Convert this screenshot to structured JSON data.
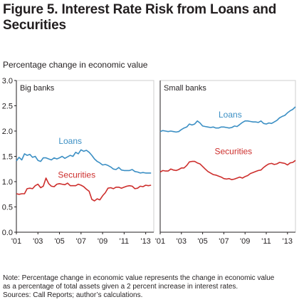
{
  "title": "Figure 5. Interest Rate Risk from Loans and Securities",
  "subtitle": "Percentage change in economic value",
  "note_lines": [
    "Note: Percentage change in economic value represents the change in economic value",
    "as a percentage of total assets given a 2 percent increase in interest rates.",
    "Sources: Call Reports; author’s calculations."
  ],
  "colors": {
    "loans": "#3b8fc4",
    "securities": "#cd2e2c",
    "axis": "#231f20",
    "panel_border": "#cfcfcf"
  },
  "chart_data": [
    {
      "type": "line",
      "panel_label": "Big banks",
      "xlim": [
        2001,
        2013.75
      ],
      "x_ticks": [
        "'01",
        "'03",
        "'05",
        "'07",
        "'09",
        "'11",
        "'13"
      ],
      "x_tick_values": [
        2001,
        2003,
        2005,
        2007,
        2009,
        2011,
        2013
      ],
      "ylim": [
        0,
        3.0
      ],
      "y_ticks": [
        "0.0",
        "0.5",
        "1.0",
        "1.5",
        "2.0",
        "2.5",
        "3.0"
      ],
      "y_tick_values": [
        0,
        0.5,
        1.0,
        1.5,
        2.0,
        2.5,
        3.0
      ],
      "grid": false,
      "series": [
        {
          "name": "Loans",
          "key": "loans",
          "label_at": [
            2006.0,
            1.75
          ],
          "x": [
            2001.0,
            2001.25,
            2001.5,
            2001.75,
            2002.0,
            2002.25,
            2002.5,
            2002.75,
            2003.0,
            2003.25,
            2003.5,
            2003.75,
            2004.0,
            2004.25,
            2004.5,
            2004.75,
            2005.0,
            2005.25,
            2005.5,
            2005.75,
            2006.0,
            2006.25,
            2006.5,
            2006.75,
            2007.0,
            2007.25,
            2007.5,
            2007.75,
            2008.0,
            2008.25,
            2008.5,
            2008.75,
            2009.0,
            2009.25,
            2009.5,
            2009.75,
            2010.0,
            2010.25,
            2010.5,
            2010.75,
            2011.0,
            2011.25,
            2011.5,
            2011.75,
            2012.0,
            2012.25,
            2012.5,
            2012.75,
            2013.0,
            2013.25,
            2013.5
          ],
          "values": [
            1.41,
            1.48,
            1.43,
            1.55,
            1.52,
            1.54,
            1.48,
            1.5,
            1.42,
            1.4,
            1.47,
            1.47,
            1.45,
            1.43,
            1.47,
            1.45,
            1.47,
            1.5,
            1.46,
            1.49,
            1.52,
            1.5,
            1.58,
            1.55,
            1.63,
            1.6,
            1.62,
            1.58,
            1.52,
            1.45,
            1.4,
            1.37,
            1.33,
            1.34,
            1.32,
            1.29,
            1.25,
            1.24,
            1.28,
            1.23,
            1.22,
            1.22,
            1.22,
            1.24,
            1.2,
            1.19,
            1.17,
            1.18,
            1.17,
            1.17,
            1.17
          ]
        },
        {
          "name": "Securities",
          "key": "securities",
          "label_at": [
            2006.6,
            1.08
          ],
          "x": [
            2001.0,
            2001.25,
            2001.5,
            2001.75,
            2002.0,
            2002.25,
            2002.5,
            2002.75,
            2003.0,
            2003.25,
            2003.5,
            2003.75,
            2004.0,
            2004.25,
            2004.5,
            2004.75,
            2005.0,
            2005.25,
            2005.5,
            2005.75,
            2006.0,
            2006.25,
            2006.5,
            2006.75,
            2007.0,
            2007.25,
            2007.5,
            2007.75,
            2008.0,
            2008.25,
            2008.5,
            2008.75,
            2009.0,
            2009.25,
            2009.5,
            2009.75,
            2010.0,
            2010.25,
            2010.5,
            2010.75,
            2011.0,
            2011.25,
            2011.5,
            2011.75,
            2012.0,
            2012.25,
            2012.5,
            2012.75,
            2013.0,
            2013.25,
            2013.5
          ],
          "values": [
            0.76,
            0.75,
            0.76,
            0.76,
            0.86,
            0.87,
            0.86,
            0.92,
            0.95,
            0.88,
            0.91,
            1.07,
            0.96,
            0.91,
            0.9,
            0.95,
            0.96,
            0.95,
            0.94,
            0.97,
            0.92,
            0.92,
            0.92,
            0.95,
            0.93,
            0.9,
            0.85,
            0.81,
            0.65,
            0.62,
            0.66,
            0.64,
            0.72,
            0.78,
            0.87,
            0.88,
            0.86,
            0.89,
            0.89,
            0.87,
            0.89,
            0.91,
            0.92,
            0.91,
            0.86,
            0.87,
            0.91,
            0.9,
            0.93,
            0.92,
            0.93
          ]
        }
      ]
    },
    {
      "type": "line",
      "panel_label": "Small banks",
      "xlim": [
        2001,
        2013.75
      ],
      "x_ticks": [
        "'01",
        "'03",
        "'05",
        "'07",
        "'09",
        "'11",
        "'13"
      ],
      "x_tick_values": [
        2001,
        2003,
        2005,
        2007,
        2009,
        2011,
        2013
      ],
      "ylim": [
        0,
        3.0
      ],
      "grid": false,
      "series": [
        {
          "name": "Loans",
          "key": "loans",
          "label_at": [
            2007.6,
            2.27
          ],
          "x": [
            2001.0,
            2001.25,
            2001.5,
            2001.75,
            2002.0,
            2002.25,
            2002.5,
            2002.75,
            2003.0,
            2003.25,
            2003.5,
            2003.75,
            2004.0,
            2004.25,
            2004.5,
            2004.75,
            2005.0,
            2005.25,
            2005.5,
            2005.75,
            2006.0,
            2006.25,
            2006.5,
            2006.75,
            2007.0,
            2007.25,
            2007.5,
            2007.75,
            2008.0,
            2008.25,
            2008.5,
            2008.75,
            2009.0,
            2009.25,
            2009.5,
            2009.75,
            2010.0,
            2010.25,
            2010.5,
            2010.75,
            2011.0,
            2011.25,
            2011.5,
            2011.75,
            2012.0,
            2012.25,
            2012.5,
            2012.75,
            2013.0,
            2013.25,
            2013.5,
            2013.75
          ],
          "values": [
            1.99,
            2.01,
            2.0,
            1.99,
            2.0,
            1.99,
            1.98,
            1.99,
            2.03,
            2.06,
            2.08,
            2.14,
            2.12,
            2.14,
            2.2,
            2.16,
            2.1,
            2.09,
            2.08,
            2.07,
            2.08,
            2.06,
            2.06,
            2.08,
            2.08,
            2.07,
            2.06,
            2.07,
            2.1,
            2.09,
            2.13,
            2.17,
            2.2,
            2.2,
            2.19,
            2.18,
            2.18,
            2.17,
            2.2,
            2.15,
            2.14,
            2.16,
            2.15,
            2.18,
            2.21,
            2.26,
            2.29,
            2.31,
            2.36,
            2.4,
            2.43,
            2.48
          ]
        },
        {
          "name": "Securities",
          "key": "securities",
          "label_at": [
            2007.9,
            1.54
          ],
          "x": [
            2001.0,
            2001.25,
            2001.5,
            2001.75,
            2002.0,
            2002.25,
            2002.5,
            2002.75,
            2003.0,
            2003.25,
            2003.5,
            2003.75,
            2004.0,
            2004.25,
            2004.5,
            2004.75,
            2005.0,
            2005.25,
            2005.5,
            2005.75,
            2006.0,
            2006.25,
            2006.5,
            2006.75,
            2007.0,
            2007.25,
            2007.5,
            2007.75,
            2008.0,
            2008.25,
            2008.5,
            2008.75,
            2009.0,
            2009.25,
            2009.5,
            2009.75,
            2010.0,
            2010.25,
            2010.5,
            2010.75,
            2011.0,
            2011.25,
            2011.5,
            2011.75,
            2012.0,
            2012.25,
            2012.5,
            2012.75,
            2013.0,
            2013.25,
            2013.5,
            2013.75
          ],
          "values": [
            1.19,
            1.22,
            1.21,
            1.21,
            1.25,
            1.23,
            1.22,
            1.24,
            1.27,
            1.27,
            1.32,
            1.39,
            1.4,
            1.4,
            1.37,
            1.35,
            1.3,
            1.25,
            1.2,
            1.17,
            1.14,
            1.13,
            1.11,
            1.09,
            1.06,
            1.05,
            1.06,
            1.04,
            1.05,
            1.07,
            1.09,
            1.07,
            1.1,
            1.12,
            1.16,
            1.18,
            1.2,
            1.22,
            1.23,
            1.28,
            1.32,
            1.35,
            1.36,
            1.34,
            1.35,
            1.38,
            1.37,
            1.36,
            1.33,
            1.37,
            1.38,
            1.42
          ]
        }
      ]
    }
  ]
}
